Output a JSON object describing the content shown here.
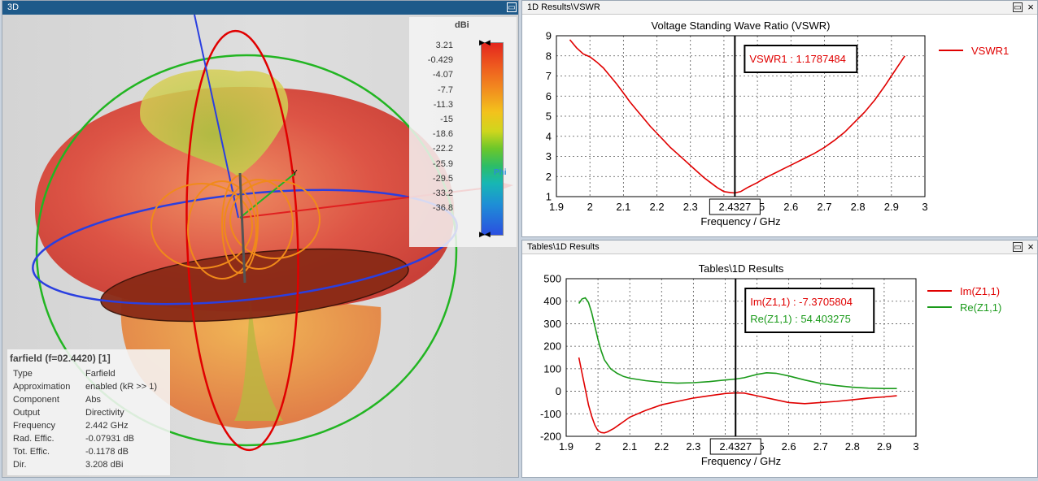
{
  "panes": {
    "left": {
      "title": "3D"
    },
    "top_right": {
      "title": "1D Results\\VSWR"
    },
    "bottom_right": {
      "title": "Tables\\1D Results"
    }
  },
  "window_buttons": {
    "restore": "▭",
    "close": "×"
  },
  "legend3d": {
    "unit": "dBi",
    "ticks": [
      "3.21",
      "-0.429",
      "-4.07",
      "-7.7",
      "-11.3",
      "-15",
      "-18.6",
      "-22.2",
      "-25.9",
      "-29.5",
      "-33.2",
      "-36.8"
    ],
    "axis_label": "Phi",
    "y_label": "Y"
  },
  "farfield_info": {
    "title": "farfield (f=02.4420) [1]",
    "rows": [
      {
        "k": "Type",
        "v": "Farfield"
      },
      {
        "k": "Approximation",
        "v": "enabled (kR >> 1)"
      },
      {
        "k": "Component",
        "v": "Abs"
      },
      {
        "k": "Output",
        "v": "Directivity"
      },
      {
        "k": "Frequency",
        "v": "2.442 GHz"
      },
      {
        "k": "Rad. Effic.",
        "v": "-0.07931 dB"
      },
      {
        "k": "Tot. Effic.",
        "v": "-0.1178 dB"
      },
      {
        "k": "Dir.",
        "v": "3.208 dBi"
      }
    ]
  },
  "chart_data": [
    {
      "type": "line",
      "title": "Voltage Standing Wave Ratio (VSWR)",
      "xlabel": "Frequency / GHz",
      "ylabel": "",
      "xlim": [
        1.9,
        3.0
      ],
      "ylim": [
        1,
        9
      ],
      "x_ticks": [
        "1.9",
        "2",
        "2.1",
        "2.2",
        "2.3",
        "2.4",
        "2.5",
        "2.6",
        "2.7",
        "2.8",
        "2.9",
        "3"
      ],
      "y_ticks": [
        "1",
        "2",
        "3",
        "4",
        "5",
        "6",
        "7",
        "8",
        "9"
      ],
      "grid": true,
      "legend_position": "right",
      "marker": {
        "x": 2.4327,
        "label": "2.4327",
        "readout": "VSWR1 : 1.1787484"
      },
      "series": [
        {
          "name": "VSWR1",
          "color": "#e00000",
          "x": [
            1.94,
            1.96,
            1.98,
            2.0,
            2.02,
            2.04,
            2.06,
            2.08,
            2.1,
            2.12,
            2.14,
            2.16,
            2.18,
            2.2,
            2.22,
            2.24,
            2.26,
            2.28,
            2.3,
            2.32,
            2.34,
            2.36,
            2.38,
            2.4,
            2.42,
            2.4327,
            2.45,
            2.47,
            2.5,
            2.52,
            2.55,
            2.58,
            2.61,
            2.64,
            2.67,
            2.7,
            2.73,
            2.76,
            2.79,
            2.82,
            2.85,
            2.88,
            2.9,
            2.92,
            2.94
          ],
          "y": [
            8.8,
            8.4,
            8.1,
            7.95,
            7.7,
            7.4,
            7.0,
            6.6,
            6.15,
            5.7,
            5.3,
            4.9,
            4.5,
            4.15,
            3.8,
            3.45,
            3.15,
            2.85,
            2.55,
            2.25,
            1.95,
            1.7,
            1.45,
            1.25,
            1.2,
            1.18,
            1.25,
            1.45,
            1.7,
            1.9,
            2.15,
            2.4,
            2.65,
            2.9,
            3.15,
            3.45,
            3.8,
            4.2,
            4.7,
            5.2,
            5.8,
            6.5,
            7.0,
            7.5,
            8.0
          ]
        }
      ]
    },
    {
      "type": "line",
      "title": "Tables\\1D Results",
      "xlabel": "Frequency / GHz",
      "ylabel": "",
      "xlim": [
        1.9,
        3.0
      ],
      "ylim": [
        -200,
        500
      ],
      "x_ticks": [
        "1.9",
        "2",
        "2.1",
        "2.2",
        "2.3",
        "2.4",
        "2.5",
        "2.6",
        "2.7",
        "2.8",
        "2.9",
        "3"
      ],
      "y_ticks": [
        "-200",
        "-100",
        "0",
        "100",
        "200",
        "300",
        "400",
        "500"
      ],
      "grid": true,
      "legend_position": "right",
      "marker": {
        "x": 2.4327,
        "label": "2.4327",
        "readouts": [
          "Im(Z1,1) : -7.3705804",
          "Re(Z1,1) : 54.403275"
        ]
      },
      "series": [
        {
          "name": "Im(Z1,1)",
          "color": "#e00000",
          "x": [
            1.94,
            1.95,
            1.96,
            1.97,
            1.98,
            1.99,
            2.0,
            2.01,
            2.02,
            2.03,
            2.05,
            2.08,
            2.1,
            2.15,
            2.2,
            2.25,
            2.3,
            2.35,
            2.4,
            2.4327,
            2.46,
            2.5,
            2.55,
            2.6,
            2.65,
            2.7,
            2.75,
            2.8,
            2.85,
            2.9,
            2.94
          ],
          "y": [
            150,
            80,
            10,
            -60,
            -110,
            -150,
            -175,
            -183,
            -185,
            -180,
            -165,
            -135,
            -115,
            -85,
            -60,
            -45,
            -30,
            -20,
            -10,
            -7.4,
            -8,
            -20,
            -35,
            -50,
            -55,
            -50,
            -45,
            -38,
            -30,
            -25,
            -20
          ]
        },
        {
          "name": "Re(Z1,1)",
          "color": "#1a9a1a",
          "x": [
            1.94,
            1.95,
            1.96,
            1.97,
            1.98,
            1.99,
            2.0,
            2.01,
            2.02,
            2.04,
            2.06,
            2.08,
            2.1,
            2.15,
            2.2,
            2.25,
            2.3,
            2.35,
            2.4,
            2.4327,
            2.46,
            2.5,
            2.53,
            2.56,
            2.6,
            2.65,
            2.7,
            2.75,
            2.8,
            2.85,
            2.9,
            2.94
          ],
          "y": [
            390,
            410,
            415,
            395,
            350,
            290,
            230,
            180,
            140,
            100,
            80,
            66,
            58,
            47,
            40,
            36,
            38,
            43,
            50,
            54.4,
            60,
            75,
            82,
            80,
            68,
            50,
            35,
            25,
            18,
            14,
            12,
            12
          ]
        }
      ]
    }
  ]
}
